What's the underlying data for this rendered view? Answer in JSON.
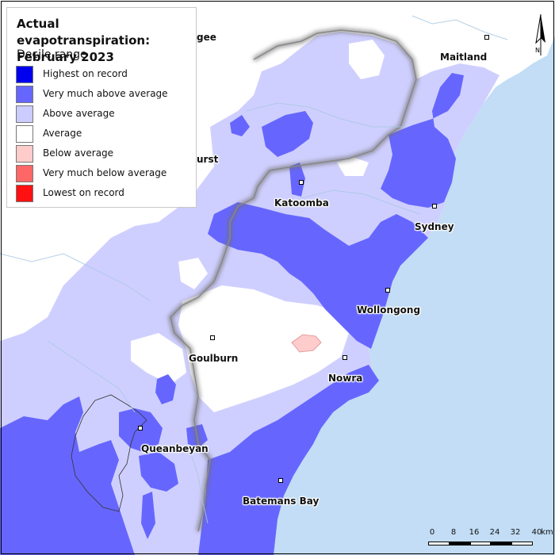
{
  "legend": {
    "title": "Actual evapotranspiration:\nFebruary 2023",
    "subtitle": "Decile range",
    "items": [
      {
        "label": "Highest on record",
        "color": "#0000ee"
      },
      {
        "label": "Very much above average",
        "color": "#6666ff"
      },
      {
        "label": "Above average",
        "color": "#ccccff"
      },
      {
        "label": "Average",
        "color": "#ffffff"
      },
      {
        "label": "Below average",
        "color": "#ffcccc"
      },
      {
        "label": "Very much below average",
        "color": "#ff6666"
      },
      {
        "label": "Lowest on record",
        "color": "#ff1111"
      }
    ]
  },
  "places": {
    "maitland": "Maitland",
    "katoomba": "Katoomba",
    "sydney": "Sydney",
    "wollongong": "Wollongong",
    "goulburn": "Goulburn",
    "nowra": "Nowra",
    "queanbeyan": "Queanbeyan",
    "batemans_bay": "Batemans Bay",
    "partial_mudgee": "gee",
    "partial_bathurst": "urst"
  },
  "scale": {
    "ticks": [
      "0",
      "8",
      "16",
      "24",
      "32",
      "40"
    ],
    "unit": "km"
  },
  "north_label": "N",
  "colors": {
    "sea": "#c2ddf5",
    "land": "#ffffff",
    "region_outline": "#888888"
  }
}
